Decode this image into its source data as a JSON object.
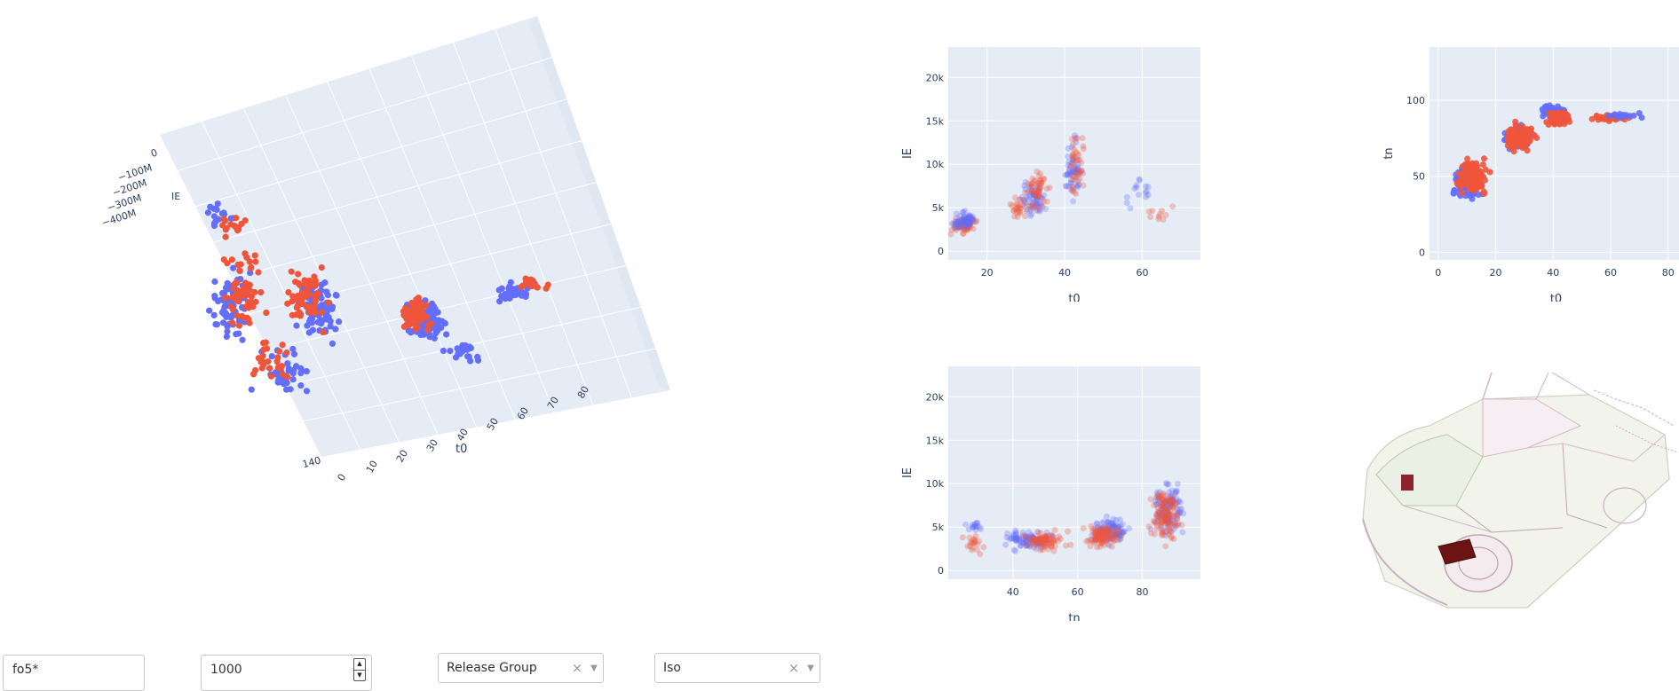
{
  "plot3d": {
    "ie_ticks": [
      "0",
      "−100M",
      "−200M",
      "−300M",
      "−400M"
    ],
    "ie_label": "IE",
    "t0_ticks": [
      "0",
      "10",
      "20",
      "30",
      "40",
      "50",
      "60",
      "70",
      "80"
    ],
    "t0_label": "t0",
    "tn_ticks": [
      "140"
    ]
  },
  "chart_data": [
    {
      "type": "scatter",
      "xlabel": "t0",
      "ylabel": "IE",
      "xlim": [
        10,
        75
      ],
      "ylim": [
        -1000,
        23500
      ],
      "xticks": [
        20,
        40,
        60
      ],
      "yticks": [
        {
          "v": 0,
          "l": "0"
        },
        {
          "v": 5000,
          "l": "5k"
        },
        {
          "v": 10000,
          "l": "10k"
        },
        {
          "v": 15000,
          "l": "15k"
        },
        {
          "v": 20000,
          "l": "20k"
        }
      ]
    },
    {
      "type": "scatter",
      "xlabel": "t0",
      "ylabel": "tn",
      "xlim": [
        -3,
        85
      ],
      "ylim": [
        -5,
        135
      ],
      "xticks": [
        0,
        20,
        40,
        60,
        80
      ],
      "yticks": [
        {
          "v": 0,
          "l": "0"
        },
        {
          "v": 50,
          "l": "50"
        },
        {
          "v": 100,
          "l": "100"
        }
      ]
    },
    {
      "type": "scatter",
      "xlabel": "tn",
      "ylabel": "IE",
      "xlim": [
        20,
        98
      ],
      "ylim": [
        -1000,
        23500
      ],
      "xticks": [
        40,
        60,
        80
      ],
      "yticks": [
        {
          "v": 0,
          "l": "0"
        },
        {
          "v": 5000,
          "l": "5k"
        },
        {
          "v": 10000,
          "l": "10k"
        },
        {
          "v": 15000,
          "l": "15k"
        },
        {
          "v": 20000,
          "l": "20k"
        }
      ]
    }
  ],
  "colors": {
    "series_a": "#636efa",
    "series_b": "#ef553b",
    "plot_bg": "#e5ecf6",
    "grid": "#ffffff"
  },
  "controls": {
    "search_value": "fo5*",
    "number_value": "1000",
    "select_group": "Release Group",
    "select_view": "Iso",
    "clear_glyph": "×",
    "caret_glyph": "▼",
    "spin_up": "▲",
    "spin_down": "▼"
  }
}
